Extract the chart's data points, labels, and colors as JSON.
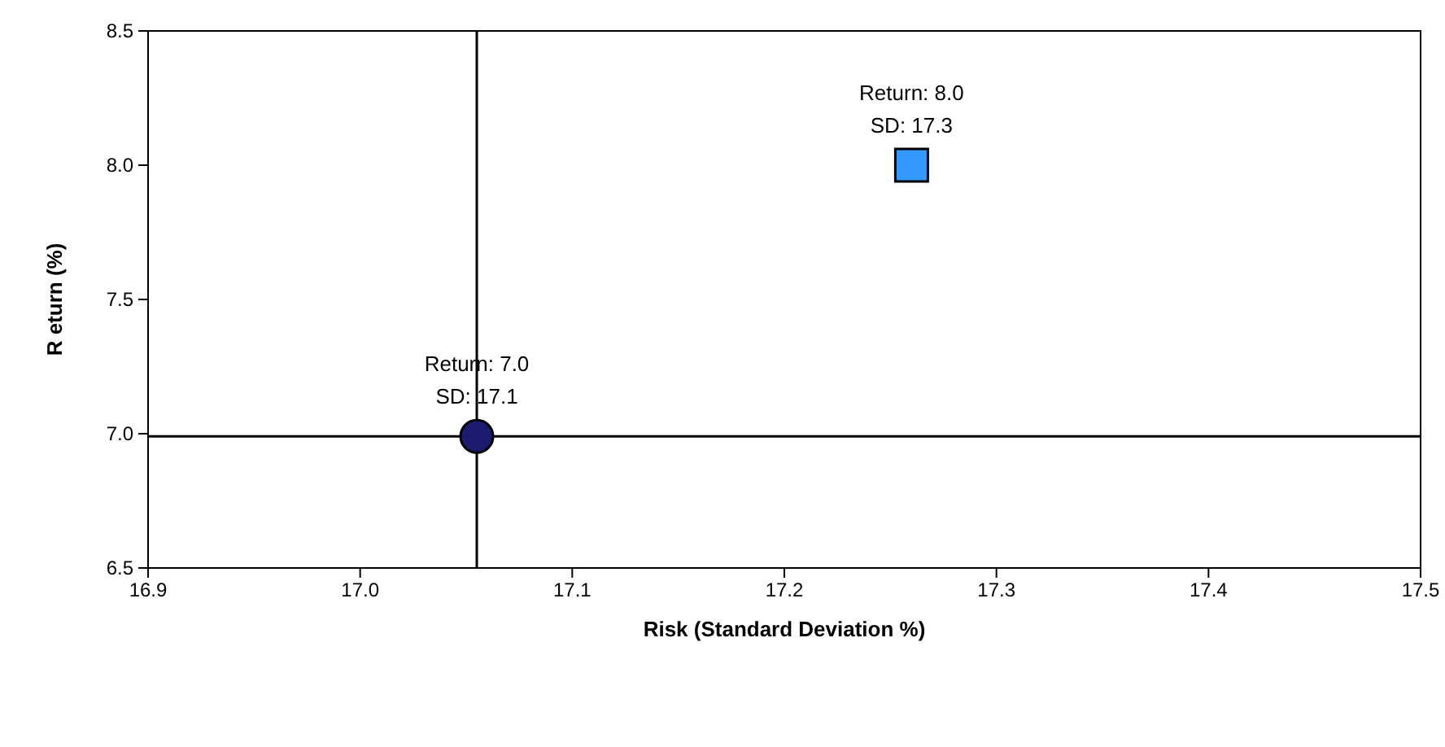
{
  "chart_data": {
    "type": "scatter",
    "xlabel": "Risk (Standard Deviation %)",
    "ylabel": "R eturn (%)",
    "xlim": [
      16.9,
      17.5
    ],
    "xticks": [
      {
        "value": 16.9,
        "label": "16.9"
      },
      {
        "value": 17.0,
        "label": "17.0"
      },
      {
        "value": 17.1,
        "label": "17.1"
      },
      {
        "value": 17.2,
        "label": "17.2"
      },
      {
        "value": 17.3,
        "label": "17.3"
      },
      {
        "value": 17.4,
        "label": "17.4"
      },
      {
        "value": 17.5,
        "label": "17.5"
      }
    ],
    "ylim": [
      6.5,
      8.5
    ],
    "yticks": [
      {
        "value": 6.5,
        "label": "6.5"
      },
      {
        "value": 7.0,
        "label": "7.0"
      },
      {
        "value": 7.5,
        "label": "7.5"
      },
      {
        "value": 8.0,
        "label": "8.0"
      },
      {
        "value": 8.5,
        "label": "8.5"
      }
    ],
    "grid": false,
    "series": [
      {
        "color": "#3399ff",
        "marker": "square",
        "x": [
          17.26
        ],
        "values": [
          8.0
        ]
      },
      {
        "color": "#1a1a6e",
        "marker": "circle",
        "x": [
          17.055
        ],
        "values": [
          6.99
        ]
      }
    ],
    "ref_lines": [
      {
        "axis": "x",
        "value": 17.055,
        "color": "#000000"
      },
      {
        "axis": "y",
        "value": 6.99,
        "color": "#000000"
      }
    ],
    "annotations": [
      {
        "text": "Return: 8.0\nSD: 17.3",
        "x": 17.26,
        "y": 8.0
      },
      {
        "text": "Return: 7.0\nSD: 17.1",
        "x": 17.055,
        "y": 6.99
      }
    ]
  }
}
